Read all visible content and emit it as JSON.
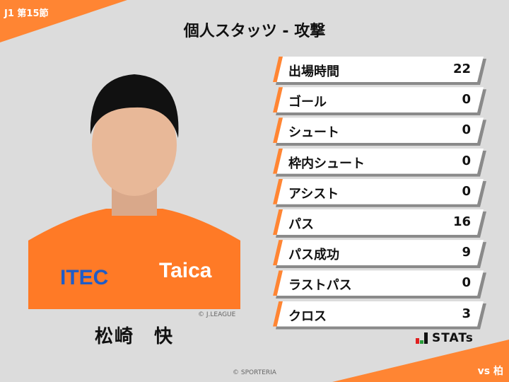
{
  "header": {
    "matchday": "J1 第15節",
    "title": "個人スタッツ - 攻撃",
    "opponent": "vs 柏"
  },
  "player": {
    "name": "松崎　快",
    "photo_credit": "© J.LEAGUE",
    "jersey_text": [
      "ITEC",
      "Taica"
    ]
  },
  "stats": [
    {
      "label": "出場時間",
      "value": "22"
    },
    {
      "label": "ゴール",
      "value": "0"
    },
    {
      "label": "シュート",
      "value": "0"
    },
    {
      "label": "枠内シュート",
      "value": "0"
    },
    {
      "label": "アシスト",
      "value": "0"
    },
    {
      "label": "パス",
      "value": "16"
    },
    {
      "label": "パス成功",
      "value": "9"
    },
    {
      "label": "ラストパス",
      "value": "0"
    },
    {
      "label": "クロス",
      "value": "3"
    }
  ],
  "brand": {
    "logo": "STATs"
  },
  "footer": {
    "copyright": "© SPORTERIA"
  },
  "colors": {
    "accent": "#ff8533",
    "background": "#dcdcdc"
  }
}
